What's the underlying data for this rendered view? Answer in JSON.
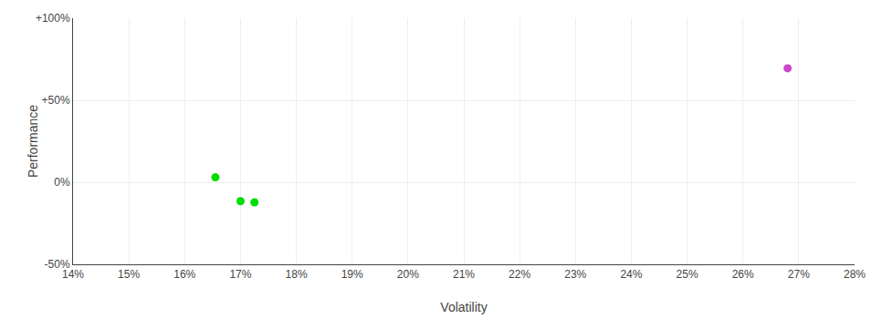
{
  "chart_data": {
    "type": "scatter",
    "xlabel": "Volatility",
    "ylabel": "Performance",
    "x": [
      0.1655,
      0.17,
      0.1725,
      0.268
    ],
    "values": [
      0.03,
      -0.115,
      -0.122,
      0.695
    ],
    "colors": [
      "#00dd00",
      "#00dd00",
      "#00dd00",
      "#cc44cc"
    ],
    "marker": "circle",
    "xlim": [
      0.14,
      0.28
    ],
    "ylim": [
      -0.5,
      1.0
    ],
    "xticks": [
      {
        "value": 0.14,
        "label": "14%"
      },
      {
        "value": 0.15,
        "label": "15%"
      },
      {
        "value": 0.16,
        "label": "16%"
      },
      {
        "value": 0.17,
        "label": "17%"
      },
      {
        "value": 0.18,
        "label": "18%"
      },
      {
        "value": 0.19,
        "label": "19%"
      },
      {
        "value": 0.2,
        "label": "20%"
      },
      {
        "value": 0.21,
        "label": "21%"
      },
      {
        "value": 0.22,
        "label": "22%"
      },
      {
        "value": 0.23,
        "label": "23%"
      },
      {
        "value": 0.24,
        "label": "24%"
      },
      {
        "value": 0.25,
        "label": "25%"
      },
      {
        "value": 0.26,
        "label": "26%"
      },
      {
        "value": 0.27,
        "label": "27%"
      },
      {
        "value": 0.28,
        "label": "28%"
      }
    ],
    "yticks": [
      {
        "value": -0.5,
        "label": "-50%"
      },
      {
        "value": 0.0,
        "label": "0%"
      },
      {
        "value": 0.5,
        "label": "+50%"
      },
      {
        "value": 1.0,
        "label": "+100%"
      }
    ],
    "grid": true
  }
}
